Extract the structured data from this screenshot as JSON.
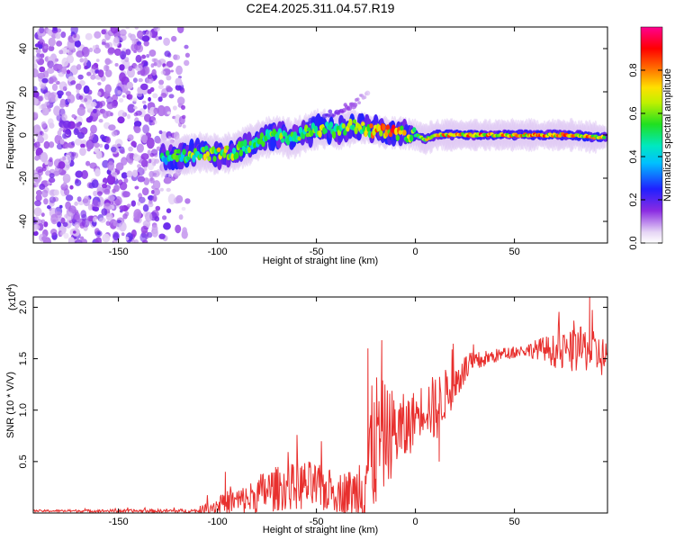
{
  "chart_data": [
    {
      "type": "heatmap",
      "title": "C2E4.2025.311.04.57.R19",
      "xlabel": "Height of straight line (km)",
      "ylabel": "Frequency (Hz)",
      "xlim": [
        -193,
        97
      ],
      "ylim": [
        -50,
        50
      ],
      "x_ticks": [
        -150,
        -100,
        -50,
        0,
        50
      ],
      "y_ticks": [
        -40,
        -20,
        0,
        20,
        40
      ],
      "colorbar": {
        "label": "Normalized spectral amplitude",
        "range": [
          0,
          1
        ],
        "ticks": [
          0.0,
          0.2,
          0.4,
          0.6,
          0.8
        ]
      },
      "noise_region": {
        "x_from": -193,
        "x_to": -115,
        "freq_from": -50,
        "freq_to": 50
      },
      "signal_ridge": [
        {
          "x": -128,
          "freq": -10,
          "amp": 0.45
        },
        {
          "x": -122,
          "freq": -10,
          "amp": 0.5
        },
        {
          "x": -115,
          "freq": -9,
          "amp": 0.55
        },
        {
          "x": -108,
          "freq": -8,
          "amp": 0.6
        },
        {
          "x": -100,
          "freq": -9,
          "amp": 0.65
        },
        {
          "x": -92,
          "freq": -8,
          "amp": 0.6
        },
        {
          "x": -85,
          "freq": -5,
          "amp": 0.55
        },
        {
          "x": -78,
          "freq": -2,
          "amp": 0.5
        },
        {
          "x": -70,
          "freq": 0,
          "amp": 0.55
        },
        {
          "x": -62,
          "freq": -2,
          "amp": 0.5
        },
        {
          "x": -55,
          "freq": 1,
          "amp": 0.55
        },
        {
          "x": -48,
          "freq": 3,
          "amp": 0.6
        },
        {
          "x": -40,
          "freq": 2,
          "amp": 0.55
        },
        {
          "x": -32,
          "freq": 4,
          "amp": 0.6
        },
        {
          "x": -25,
          "freq": 3,
          "amp": 0.65
        },
        {
          "x": -15,
          "freq": 1,
          "amp": 0.85
        },
        {
          "x": -8,
          "freq": 1,
          "amp": 0.7
        },
        {
          "x": 0,
          "freq": 0,
          "amp": 0.6
        },
        {
          "x": 5,
          "freq": -2,
          "amp": 0.65
        },
        {
          "x": 10,
          "freq": 0,
          "amp": 0.7
        },
        {
          "x": 20,
          "freq": 0,
          "amp": 0.75
        },
        {
          "x": 30,
          "freq": 0,
          "amp": 0.8
        },
        {
          "x": 40,
          "freq": 0,
          "amp": 0.75
        },
        {
          "x": 50,
          "freq": 0,
          "amp": 0.7
        },
        {
          "x": 60,
          "freq": 0,
          "amp": 0.8
        },
        {
          "x": 70,
          "freq": 0,
          "amp": 0.75
        },
        {
          "x": 80,
          "freq": 0,
          "amp": 0.8
        },
        {
          "x": 90,
          "freq": -1,
          "amp": 0.7
        },
        {
          "x": 96,
          "freq": -1,
          "amp": 0.65
        }
      ],
      "branch": [
        {
          "x": -55,
          "freq": 5,
          "amp": 0.4
        },
        {
          "x": -42,
          "freq": 10,
          "amp": 0.3
        },
        {
          "x": -30,
          "freq": 15,
          "amp": 0.2
        },
        {
          "x": -24,
          "freq": 20,
          "amp": 0.1
        }
      ]
    },
    {
      "type": "line",
      "xlabel": "Height of straight line (km)",
      "ylabel": "SNR (10 * V/V)",
      "y_multiplier": "(x10",
      "y_multiplier_exp": "4",
      "y_multiplier_close": ")",
      "xlim": [
        -193,
        97
      ],
      "ylim": [
        0,
        2.1
      ],
      "x_ticks": [
        -150,
        -100,
        -50,
        0,
        50
      ],
      "y_ticks": [
        0.5,
        1.0,
        1.5,
        2.0
      ],
      "y_tick_labels": [
        "0.5",
        "1.0",
        "1.5",
        "2.0"
      ],
      "color": "#e8302e",
      "series": [
        {
          "name": "SNR",
          "envelope": [
            {
              "x": -193,
              "base": 0.02,
              "amp": 0.01
            },
            {
              "x": -110,
              "base": 0.02,
              "amp": 0.02
            },
            {
              "x": -105,
              "base": 0.05,
              "amp": 0.06
            },
            {
              "x": -95,
              "base": 0.1,
              "amp": 0.12
            },
            {
              "x": -85,
              "base": 0.13,
              "amp": 0.15
            },
            {
              "x": -75,
              "base": 0.22,
              "amp": 0.22
            },
            {
              "x": -65,
              "base": 0.25,
              "amp": 0.22
            },
            {
              "x": -55,
              "base": 0.27,
              "amp": 0.25
            },
            {
              "x": -45,
              "base": 0.22,
              "amp": 0.22
            },
            {
              "x": -38,
              "base": 0.2,
              "amp": 0.2
            },
            {
              "x": -30,
              "base": 0.2,
              "amp": 0.25
            },
            {
              "x": -25,
              "base": 0.4,
              "amp": 0.6
            },
            {
              "x": -20,
              "base": 0.7,
              "amp": 0.7
            },
            {
              "x": -15,
              "base": 0.75,
              "amp": 0.5
            },
            {
              "x": -10,
              "base": 0.8,
              "amp": 0.4
            },
            {
              "x": -5,
              "base": 0.8,
              "amp": 0.35
            },
            {
              "x": 0,
              "base": 0.95,
              "amp": 0.25
            },
            {
              "x": 5,
              "base": 1.05,
              "amp": 0.25
            },
            {
              "x": 10,
              "base": 1.0,
              "amp": 0.35
            },
            {
              "x": 15,
              "base": 1.15,
              "amp": 0.25
            },
            {
              "x": 20,
              "base": 1.25,
              "amp": 0.2
            },
            {
              "x": 25,
              "base": 1.4,
              "amp": 0.15
            },
            {
              "x": 35,
              "base": 1.5,
              "amp": 0.08
            },
            {
              "x": 45,
              "base": 1.55,
              "amp": 0.06
            },
            {
              "x": 55,
              "base": 1.58,
              "amp": 0.06
            },
            {
              "x": 65,
              "base": 1.6,
              "amp": 0.12
            },
            {
              "x": 75,
              "base": 1.55,
              "amp": 0.2
            },
            {
              "x": 85,
              "base": 1.6,
              "amp": 0.22
            },
            {
              "x": 97,
              "base": 1.5,
              "amp": 0.2
            }
          ],
          "spikes": [
            {
              "x": -96,
              "y": 0.4
            },
            {
              "x": -24,
              "y": 1.6
            },
            {
              "x": -17,
              "y": 1.68
            },
            {
              "x": 12,
              "y": 0.5
            },
            {
              "x": 88,
              "y": 2.1
            }
          ]
        }
      ]
    }
  ]
}
